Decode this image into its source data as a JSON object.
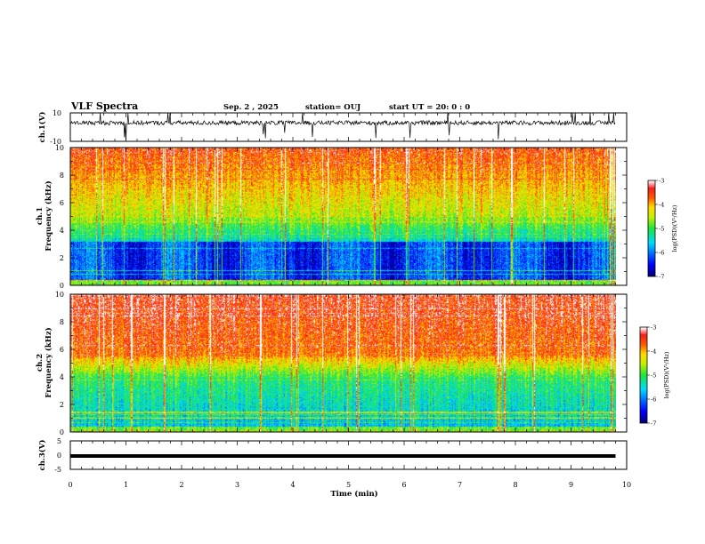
{
  "header": {
    "title": "VLF Spectra",
    "date": "Sep. 2 , 2025",
    "station": "station= OUJ",
    "start_ut": "start UT =  20: 0  : 0"
  },
  "chart_data": [
    {
      "type": "line",
      "panel": "ch1-waveform",
      "ylabel": "ch.1(V)",
      "ylim": [
        -10,
        10
      ],
      "yticks": [
        "10",
        "-10"
      ],
      "xlim": [
        0,
        10
      ],
      "baseline": 3,
      "grid": false
    },
    {
      "type": "heatmap",
      "panel": "ch1-spectrogram",
      "ylabel": "ch.1  Frequency (kHz)",
      "ylabel_line1": "ch.1",
      "ylabel_line2": "Frequency  (kHz)",
      "ylim": [
        0,
        10
      ],
      "yticks": [
        "0",
        "2",
        "4",
        "6",
        "8",
        "10"
      ],
      "xlim": [
        0,
        9.8
      ],
      "colorbar": {
        "label": "log(PSD)(V²/Hz)",
        "range": [
          -7,
          -3
        ],
        "ticks": [
          "-3",
          "-4",
          "-5",
          "-6",
          "-7"
        ]
      },
      "note": "broadband noise; stronger above ~4 kHz, weak band 0.5-3 kHz"
    },
    {
      "type": "heatmap",
      "panel": "ch2-spectrogram",
      "ylabel": "ch.2  Frequency (kHz)",
      "ylabel_line1": "ch.2",
      "ylabel_line2": "Frequency  (kHz)",
      "ylim": [
        0,
        10
      ],
      "yticks": [
        "0",
        "2",
        "4",
        "6",
        "8",
        "10"
      ],
      "xlim": [
        0,
        9.8
      ],
      "colorbar": {
        "label": "log(PSD)(V²/Hz)",
        "range": [
          -7,
          -3
        ],
        "ticks": [
          "-3",
          "-4",
          "-5",
          "-6",
          "-7"
        ]
      }
    },
    {
      "type": "line",
      "panel": "ch3-waveform",
      "ylabel": "ch.3(V)",
      "ylim": [
        -5,
        5
      ],
      "yticks": [
        "5",
        "0",
        "-5"
      ],
      "xlabel": "Time  (min)",
      "xlim": [
        0,
        10
      ],
      "xticks": [
        "0",
        "1",
        "2",
        "3",
        "4",
        "5",
        "6",
        "7",
        "8",
        "9",
        "10"
      ],
      "constant_value": -0.3
    }
  ]
}
